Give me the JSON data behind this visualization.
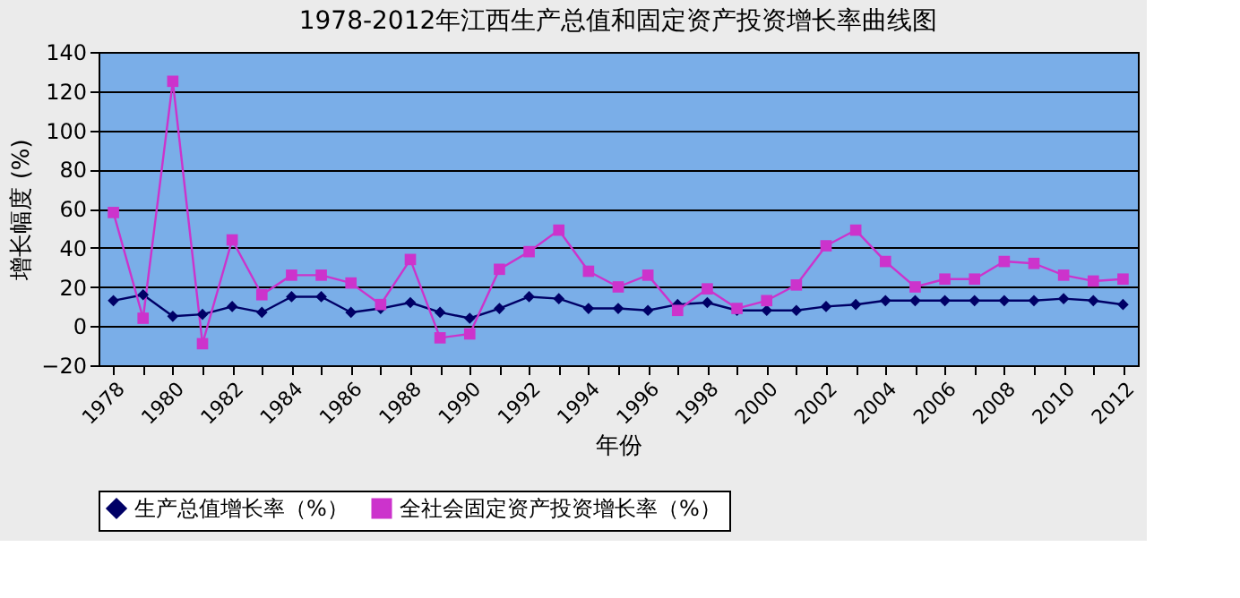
{
  "chart_data": {
    "type": "line",
    "title": "1978-2012年江西生产总值和固定资产投资增长率曲线图",
    "xlabel": "年份",
    "ylabel": "增长幅度 (%)",
    "categories": [
      "1978",
      null,
      "1980",
      null,
      "1982",
      null,
      "1984",
      null,
      "1986",
      null,
      "1988",
      null,
      "1990",
      null,
      "1992",
      null,
      "1994",
      null,
      "1996",
      null,
      "1998",
      null,
      "2000",
      null,
      "2002",
      null,
      "2004",
      null,
      "2006",
      null,
      "2008",
      null,
      "2010",
      null,
      "2012"
    ],
    "series": [
      {
        "name": "生产总值增长率（%）",
        "color": "#000066",
        "marker": "diamond",
        "values": [
          13,
          16,
          5,
          6,
          10,
          7,
          15,
          15,
          7,
          9,
          12,
          7,
          4,
          9,
          15,
          14,
          9,
          9,
          8,
          11,
          12,
          8,
          8,
          8,
          10,
          11,
          13,
          13,
          13,
          13,
          13,
          13,
          14,
          13,
          11
        ]
      },
      {
        "name": "全社会固定资产投资增长率（%）",
        "color": "#cc33cc",
        "marker": "square",
        "values": [
          58,
          4,
          125,
          -9,
          44,
          16,
          26,
          26,
          22,
          11,
          34,
          -6,
          -4,
          29,
          38,
          49,
          28,
          20,
          26,
          8,
          19,
          9,
          13,
          21,
          41,
          49,
          33,
          20,
          24,
          24,
          33,
          32,
          26,
          23,
          24
        ]
      }
    ],
    "ylim": [
      -20,
      140
    ],
    "yticks": [
      -20,
      0,
      20,
      40,
      60,
      80,
      100,
      120,
      140
    ],
    "grid": "y",
    "legend": "bottom",
    "line_style": "solid"
  }
}
